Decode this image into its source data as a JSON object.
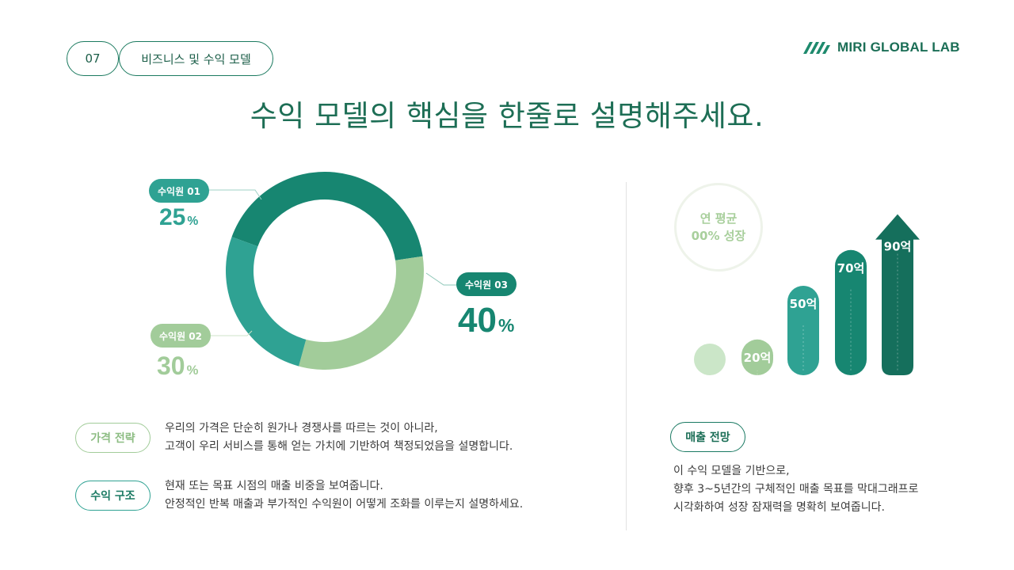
{
  "header": {
    "page_number": "07",
    "section": "비즈니스 및 수익 모델",
    "brand": "MIRI GLOBAL LAB"
  },
  "title": "수익 모델의 핵심을 한줄로 설명해주세요.",
  "donut": {
    "segments": [
      {
        "label": "수익원 01",
        "value": 25,
        "value_text": "25",
        "unit": "%",
        "color": "#2fa293"
      },
      {
        "label": "수익원 02",
        "value": 30,
        "value_text": "30",
        "unit": "%",
        "color": "#a2cc9a"
      },
      {
        "label": "수익원 03",
        "value": 40,
        "value_text": "40",
        "unit": "%",
        "color": "#178671"
      }
    ]
  },
  "left_notes": [
    {
      "tag": "가격 전략",
      "lines": [
        "우리의 가격은 단순히 원가나 경쟁사를 따르는 것이 아니라,",
        "고객이 우리 서비스를 통해 얻는 가치에 기반하여 책정되었음을 설명합니다."
      ]
    },
    {
      "tag": "수익 구조",
      "lines": [
        "현재 또는 목표 시점의 매출 비중을 보여줍니다.",
        "안정적인 반복 매출과 부가적인 수익원이 어떻게 조화를 이루는지 설명하세요."
      ]
    }
  ],
  "growth": {
    "bubble_line1": "연 평균",
    "bubble_line2": "00% 성장"
  },
  "chart_data": {
    "type": "bar",
    "categories": [
      "",
      "",
      "",
      "",
      ""
    ],
    "values": [
      null,
      20,
      50,
      70,
      90
    ],
    "value_labels": [
      "",
      "20억",
      "50억",
      "70억",
      "90억"
    ],
    "colors": [
      "#cbe6c8",
      "#a2cc9a",
      "#2fa293",
      "#178671",
      "#156f5c"
    ],
    "final_bar_arrow": true
  },
  "right_note": {
    "tag": "매출 전망",
    "lines": [
      "이 수익 모델을 기반으로,",
      "향후 3~5년간의 구체적인 매출 목표를 막대그래프로",
      "시각화하여 성장 잠재력을 명확히 보여줍니다."
    ]
  }
}
